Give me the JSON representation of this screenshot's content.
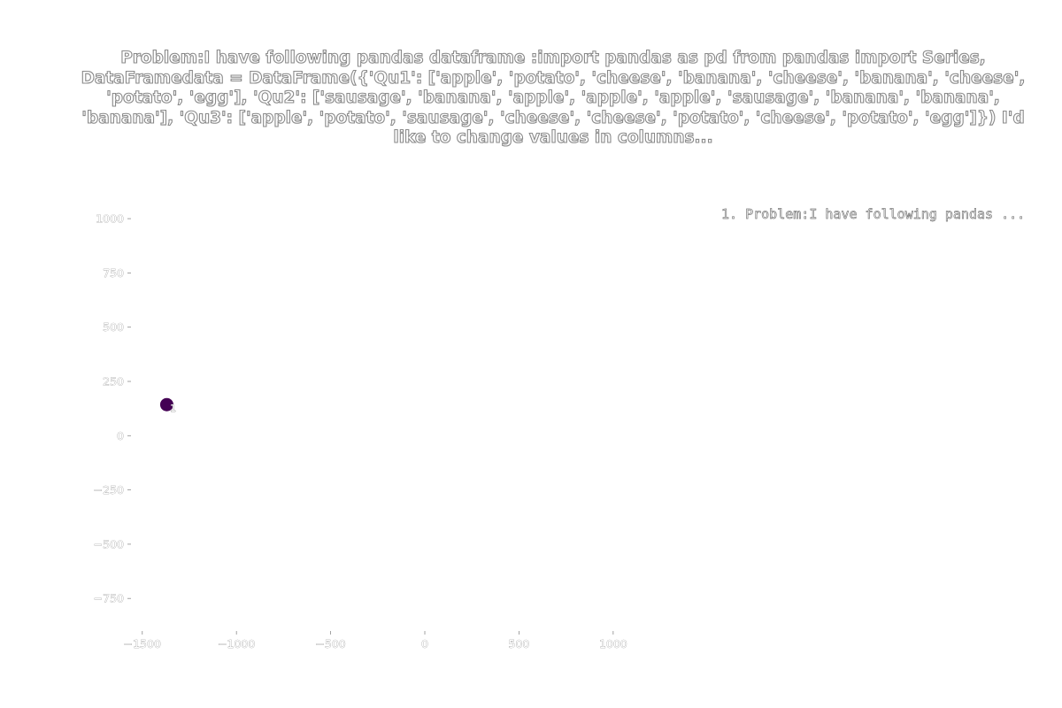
{
  "chart_data": {
    "type": "scatter",
    "title": "Problem:I have following pandas dataframe :import pandas as pd from pandas import Series, DataFramedata = DataFrame({'Qu1': ['apple', 'potato', 'cheese', 'banana', 'cheese', 'banana', 'cheese', 'potato', 'egg'],              'Qu2': ['sausage', 'banana', 'apple', 'apple', 'apple', 'sausage', 'banana', 'banana', 'banana'],              'Qu3': ['apple', 'potato', 'sausage', 'cheese', 'cheese', 'potato', 'cheese', 'potato', 'egg']}) I'd like to change values in columns...",
    "legend": "1. Problem:I have following pandas ...",
    "legend_position": "top-right",
    "xlim": [
      -1560,
      1090
    ],
    "ylim": [
      -900,
      1090
    ],
    "xticks": [
      "−1500",
      "−1000",
      "−500",
      "0",
      "500",
      "1000"
    ],
    "xtick_values": [
      -1500,
      -1000,
      -500,
      0,
      500,
      1000
    ],
    "yticks": [
      "1000",
      "750",
      "500",
      "250",
      "0",
      "−250",
      "−500",
      "−750"
    ],
    "ytick_values": [
      1000,
      750,
      500,
      250,
      0,
      -250,
      -500,
      -750
    ],
    "grid": false,
    "points": [
      {
        "x": -1370,
        "y": 143,
        "label": "1",
        "color": "#440154"
      }
    ],
    "tick_color": "#8c8c8c"
  }
}
